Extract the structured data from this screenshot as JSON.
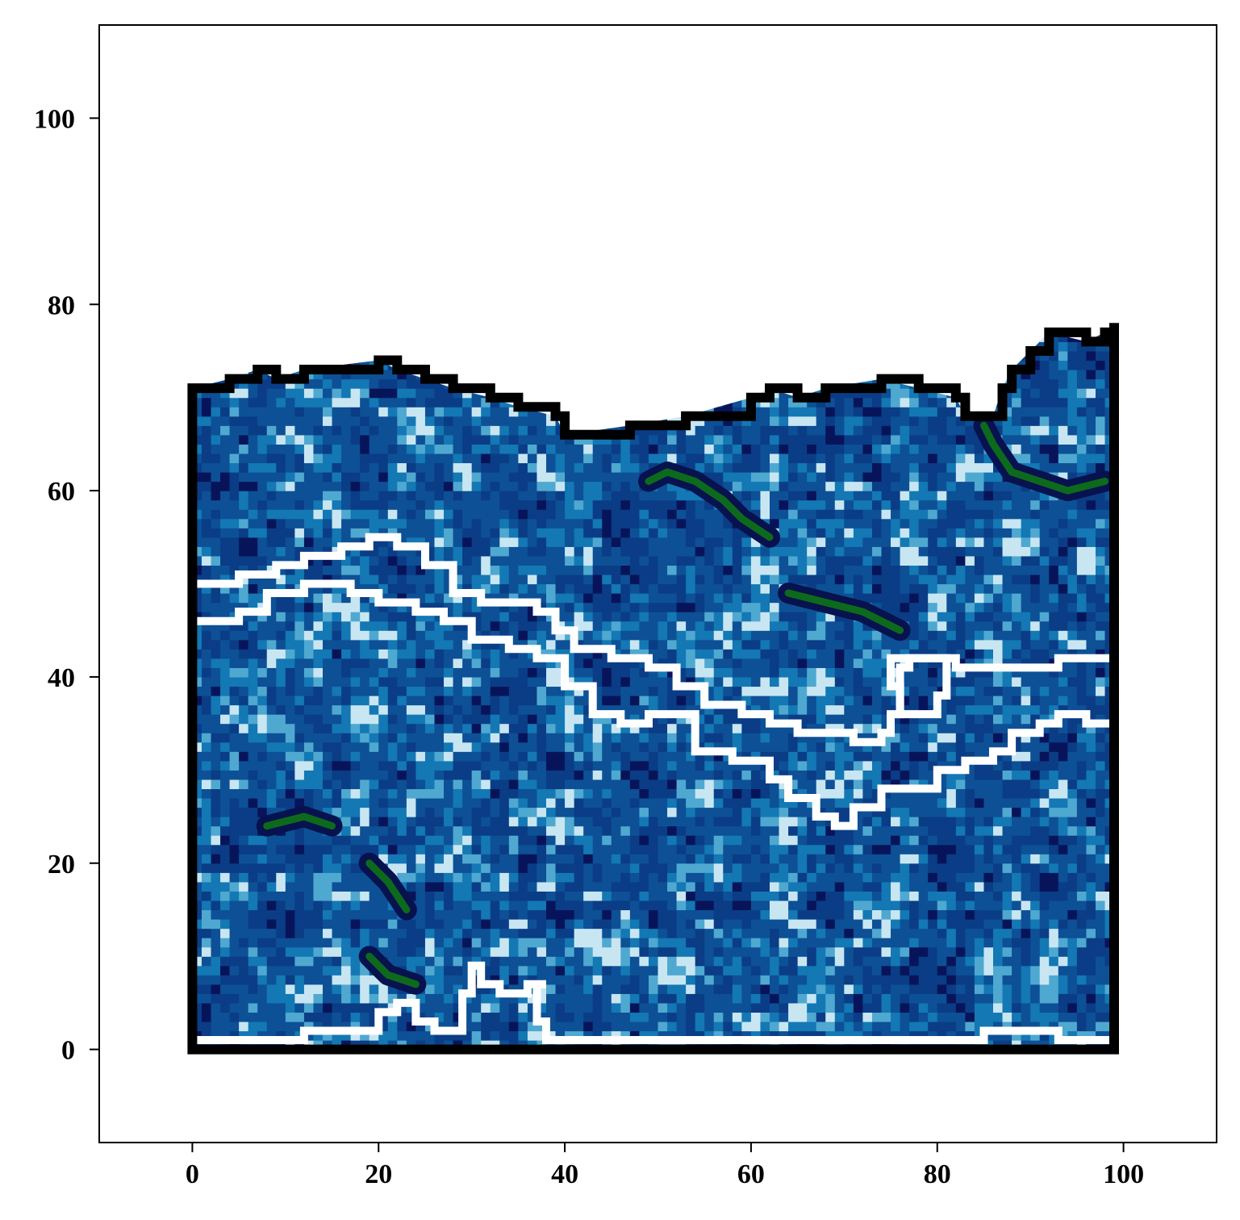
{
  "chart_data": {
    "type": "heatmap",
    "title": "",
    "xlabel": "",
    "ylabel": "",
    "xlim": [
      -10,
      110
    ],
    "ylim": [
      -10,
      110
    ],
    "x_ticks": [
      0,
      20,
      40,
      60,
      80,
      100
    ],
    "y_ticks": [
      0,
      20,
      40,
      60,
      80,
      100
    ],
    "x_tick_labels": [
      "0",
      "20",
      "40",
      "60",
      "80",
      "100"
    ],
    "y_tick_labels": [
      "0",
      "20",
      "40",
      "60",
      "80",
      "100"
    ],
    "grid": false,
    "legend": "none",
    "colormap": [
      "#08145a",
      "#0a3d86",
      "#0d5096",
      "#1378b4",
      "#4fa8d0",
      "#c8e6f2"
    ],
    "highlight_color": "#0e7a14",
    "region_outline": {
      "color": "#000000",
      "top_boundary": [
        [
          0,
          71
        ],
        [
          4,
          72
        ],
        [
          7,
          73
        ],
        [
          9,
          72
        ],
        [
          12,
          73
        ],
        [
          20,
          74
        ],
        [
          22,
          73
        ],
        [
          25,
          72
        ],
        [
          28,
          71
        ],
        [
          32,
          70
        ],
        [
          35,
          69
        ],
        [
          39,
          68
        ],
        [
          40,
          66
        ],
        [
          47,
          67
        ],
        [
          53,
          68
        ],
        [
          60,
          70
        ],
        [
          62,
          71
        ],
        [
          65,
          70
        ],
        [
          68,
          71
        ],
        [
          74,
          72
        ],
        [
          78,
          71
        ],
        [
          82,
          70
        ],
        [
          83,
          68
        ],
        [
          86,
          68
        ],
        [
          87,
          71
        ],
        [
          88,
          73
        ],
        [
          90,
          75
        ],
        [
          92,
          77
        ],
        [
          96,
          76
        ],
        [
          98,
          77
        ],
        [
          99,
          78
        ]
      ],
      "bottom": 0
    },
    "contours": [
      {
        "color": "#ffffff",
        "points": [
          [
            0,
            50
          ],
          [
            5,
            51
          ],
          [
            9,
            52
          ],
          [
            12,
            53
          ],
          [
            16,
            54
          ],
          [
            19,
            55
          ],
          [
            22,
            54
          ],
          [
            25,
            52
          ],
          [
            28,
            49
          ],
          [
            31,
            48
          ],
          [
            34,
            48
          ],
          [
            37,
            47
          ],
          [
            39,
            45
          ],
          [
            41,
            43
          ],
          [
            45,
            42
          ],
          [
            49,
            41
          ],
          [
            52,
            39
          ],
          [
            55,
            37
          ],
          [
            59,
            36
          ],
          [
            62,
            35
          ],
          [
            65,
            34
          ],
          [
            71,
            33
          ],
          [
            74,
            34
          ],
          [
            75,
            36
          ],
          [
            76,
            39
          ],
          [
            75,
            42
          ],
          [
            79,
            42
          ],
          [
            82,
            41
          ],
          [
            88,
            41
          ],
          [
            93,
            42
          ],
          [
            99,
            41
          ]
        ]
      },
      {
        "color": "#ffffff",
        "points": [
          [
            0,
            46
          ],
          [
            5,
            47
          ],
          [
            8,
            49
          ],
          [
            12,
            50
          ],
          [
            17,
            49
          ],
          [
            20,
            48
          ],
          [
            24,
            47
          ],
          [
            27,
            46
          ],
          [
            30,
            44
          ],
          [
            34,
            43
          ],
          [
            37,
            42
          ],
          [
            40,
            39
          ],
          [
            43,
            36
          ],
          [
            46,
            35
          ],
          [
            49,
            36
          ],
          [
            52,
            36
          ],
          [
            54,
            32
          ],
          [
            58,
            31
          ],
          [
            62,
            29
          ],
          [
            64,
            27
          ],
          [
            67,
            25
          ],
          [
            69,
            24
          ],
          [
            71,
            26
          ],
          [
            74,
            28
          ],
          [
            77,
            28
          ],
          [
            80,
            30
          ],
          [
            83,
            31
          ],
          [
            86,
            32
          ],
          [
            88,
            34
          ],
          [
            91,
            35
          ],
          [
            93,
            36
          ],
          [
            96,
            35
          ],
          [
            99,
            36
          ]
        ]
      },
      {
        "color": "#ffffff",
        "points": [
          [
            0,
            1
          ],
          [
            5,
            1
          ],
          [
            9,
            1
          ],
          [
            12,
            2
          ],
          [
            17,
            2
          ],
          [
            20,
            4
          ],
          [
            22,
            5
          ],
          [
            24,
            3
          ],
          [
            26,
            2
          ],
          [
            28,
            2
          ],
          [
            29,
            6
          ],
          [
            30,
            9
          ],
          [
            31,
            7
          ],
          [
            33,
            6
          ],
          [
            36,
            7
          ],
          [
            38,
            7
          ],
          [
            37,
            3
          ],
          [
            38,
            1
          ],
          [
            45,
            1
          ],
          [
            55,
            1
          ],
          [
            65,
            1
          ],
          [
            73,
            1
          ],
          [
            78,
            1
          ],
          [
            82,
            1
          ],
          [
            85,
            2
          ],
          [
            88,
            2
          ],
          [
            93,
            1
          ],
          [
            99,
            1
          ]
        ]
      },
      {
        "color": "#ffffff",
        "points": [
          [
            77,
            42
          ],
          [
            81,
            41
          ],
          [
            81,
            38
          ],
          [
            80,
            36
          ],
          [
            78,
            36
          ],
          [
            76,
            38
          ],
          [
            76,
            41
          ],
          [
            77,
            42
          ]
        ]
      }
    ],
    "green_features": [
      [
        [
          49,
          61
        ],
        [
          51,
          62
        ],
        [
          54,
          61
        ],
        [
          57,
          59
        ],
        [
          59,
          57
        ],
        [
          62,
          55
        ]
      ],
      [
        [
          85,
          67
        ],
        [
          86,
          65
        ],
        [
          88,
          62
        ],
        [
          91,
          61
        ],
        [
          94,
          60
        ],
        [
          98,
          61
        ]
      ],
      [
        [
          64,
          49
        ],
        [
          68,
          48
        ],
        [
          72,
          47
        ],
        [
          76,
          45
        ]
      ],
      [
        [
          8,
          24
        ],
        [
          12,
          25
        ],
        [
          15,
          24
        ]
      ],
      [
        [
          19,
          20
        ],
        [
          21,
          18
        ],
        [
          23,
          15
        ]
      ],
      [
        [
          19,
          10
        ],
        [
          21,
          8
        ],
        [
          24,
          7
        ]
      ]
    ]
  }
}
